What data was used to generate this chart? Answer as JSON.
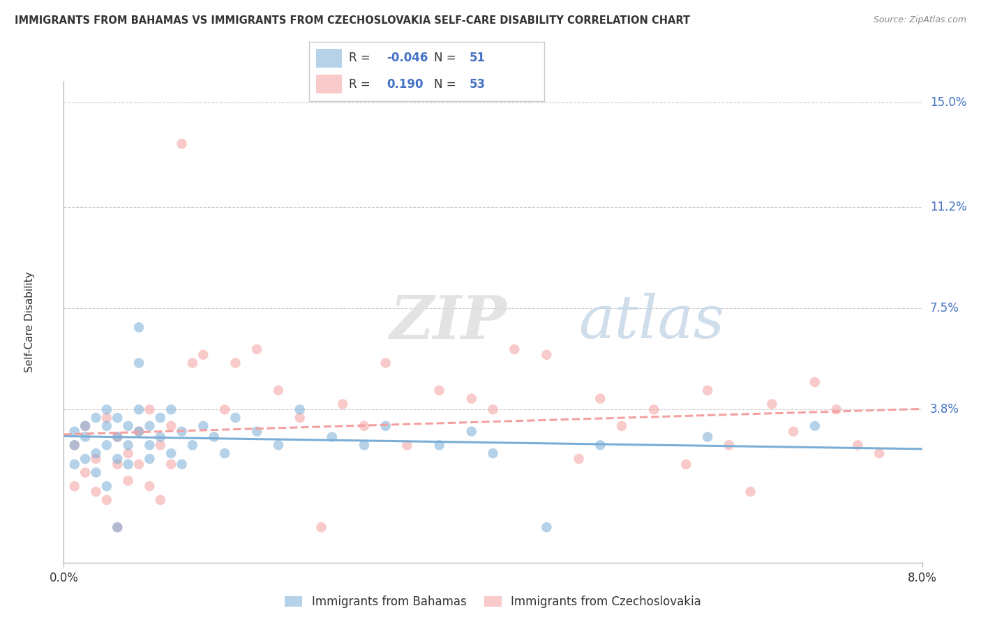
{
  "title": "IMMIGRANTS FROM BAHAMAS VS IMMIGRANTS FROM CZECHOSLOVAKIA SELF-CARE DISABILITY CORRELATION CHART",
  "source": "Source: ZipAtlas.com",
  "ylabel": "Self-Care Disability",
  "ytick_labels": [
    "3.8%",
    "7.5%",
    "11.2%",
    "15.0%"
  ],
  "ytick_values": [
    0.038,
    0.075,
    0.112,
    0.15
  ],
  "xmin": 0.0,
  "xmax": 0.08,
  "ymin": -0.018,
  "ymax": 0.158,
  "legend_label1": "Immigrants from Bahamas",
  "legend_label2": "Immigrants from Czechoslovakia",
  "R1": "-0.046",
  "N1": "51",
  "R2": "0.190",
  "N2": "53",
  "color_blue": "#7AAED6",
  "color_pink": "#F4A0A0",
  "watermark_zip": "ZIP",
  "watermark_atlas": "atlas",
  "bahamas_x": [
    0.001,
    0.001,
    0.001,
    0.002,
    0.002,
    0.002,
    0.003,
    0.003,
    0.003,
    0.004,
    0.004,
    0.004,
    0.004,
    0.005,
    0.005,
    0.005,
    0.005,
    0.006,
    0.006,
    0.006,
    0.007,
    0.007,
    0.007,
    0.007,
    0.008,
    0.008,
    0.008,
    0.009,
    0.009,
    0.01,
    0.01,
    0.011,
    0.011,
    0.012,
    0.013,
    0.014,
    0.015,
    0.016,
    0.018,
    0.02,
    0.022,
    0.025,
    0.028,
    0.03,
    0.035,
    0.038,
    0.04,
    0.045,
    0.05,
    0.06,
    0.07
  ],
  "bahamas_y": [
    0.025,
    0.03,
    0.018,
    0.032,
    0.02,
    0.028,
    0.035,
    0.015,
    0.022,
    0.025,
    0.01,
    0.032,
    0.038,
    0.02,
    0.028,
    -0.005,
    0.035,
    0.018,
    0.025,
    0.032,
    0.068,
    0.055,
    0.03,
    0.038,
    0.025,
    0.032,
    0.02,
    0.028,
    0.035,
    0.022,
    0.038,
    0.03,
    0.018,
    0.025,
    0.032,
    0.028,
    0.022,
    0.035,
    0.03,
    0.025,
    0.038,
    0.028,
    0.025,
    0.032,
    0.025,
    0.03,
    0.022,
    -0.005,
    0.025,
    0.028,
    0.032
  ],
  "czech_x": [
    0.001,
    0.001,
    0.002,
    0.002,
    0.003,
    0.003,
    0.004,
    0.004,
    0.005,
    0.005,
    0.005,
    0.006,
    0.006,
    0.007,
    0.007,
    0.008,
    0.008,
    0.009,
    0.009,
    0.01,
    0.01,
    0.011,
    0.012,
    0.013,
    0.015,
    0.016,
    0.018,
    0.02,
    0.022,
    0.024,
    0.026,
    0.028,
    0.03,
    0.032,
    0.035,
    0.038,
    0.04,
    0.042,
    0.045,
    0.048,
    0.05,
    0.052,
    0.055,
    0.058,
    0.06,
    0.062,
    0.064,
    0.066,
    0.068,
    0.07,
    0.072,
    0.074,
    0.076
  ],
  "czech_y": [
    0.025,
    0.01,
    0.032,
    0.015,
    0.02,
    0.008,
    0.035,
    0.005,
    0.018,
    0.028,
    -0.005,
    0.022,
    0.012,
    0.03,
    0.018,
    0.038,
    0.01,
    0.025,
    0.005,
    0.032,
    0.018,
    0.135,
    0.055,
    0.058,
    0.038,
    0.055,
    0.06,
    0.045,
    0.035,
    -0.005,
    0.04,
    0.032,
    0.055,
    0.025,
    0.045,
    0.042,
    0.038,
    0.06,
    0.058,
    0.02,
    0.042,
    0.032,
    0.038,
    0.018,
    0.045,
    0.025,
    0.008,
    0.04,
    0.03,
    0.048,
    0.038,
    0.025,
    0.022
  ]
}
